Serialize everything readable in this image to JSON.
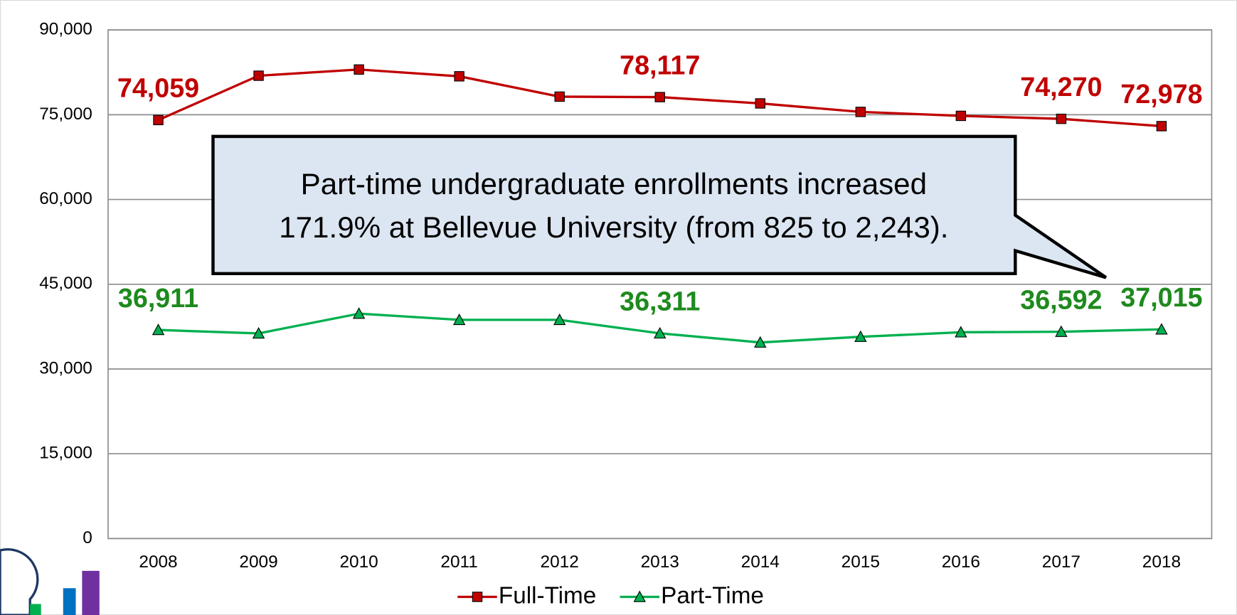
{
  "chart_data": {
    "type": "line",
    "categories": [
      "2008",
      "2009",
      "2010",
      "2011",
      "2012",
      "2013",
      "2014",
      "2015",
      "2016",
      "2017",
      "2018"
    ],
    "series": [
      {
        "name": "Full-Time",
        "color": "#c00000",
        "marker": "square",
        "values": [
          74059,
          81900,
          83000,
          81800,
          78200,
          78117,
          77000,
          75500,
          74800,
          74270,
          72978
        ],
        "value_labels": [
          "74,059",
          null,
          null,
          null,
          null,
          "78,117",
          null,
          null,
          null,
          "74,270",
          "72,978"
        ]
      },
      {
        "name": "Part-Time",
        "color": "#00b050",
        "label_color": "#1e8a1e",
        "marker": "triangle",
        "values": [
          36911,
          36300,
          39800,
          38700,
          38700,
          36311,
          34700,
          35700,
          36500,
          36592,
          37015
        ],
        "value_labels": [
          "36,911",
          null,
          null,
          null,
          null,
          "36,311",
          null,
          null,
          null,
          "36,592",
          "37,015"
        ]
      }
    ],
    "ylim": [
      0,
      90000
    ],
    "yticks": [
      0,
      {
        "value": 15000,
        "label": "15,000"
      },
      {
        "value": 30000,
        "label": "30,000"
      },
      {
        "value": 45000,
        "label": "45,000"
      },
      {
        "value": 60000,
        "label": "60,000"
      },
      {
        "value": 75000,
        "label": "75,000"
      },
      {
        "value": 90000,
        "label": "90,000"
      }
    ],
    "grid": true,
    "legend": "bottom",
    "annotation": [
      "Part-time undergraduate enrollments increased",
      "171.9% at Bellevue University (from 825 to 2,243)."
    ]
  }
}
